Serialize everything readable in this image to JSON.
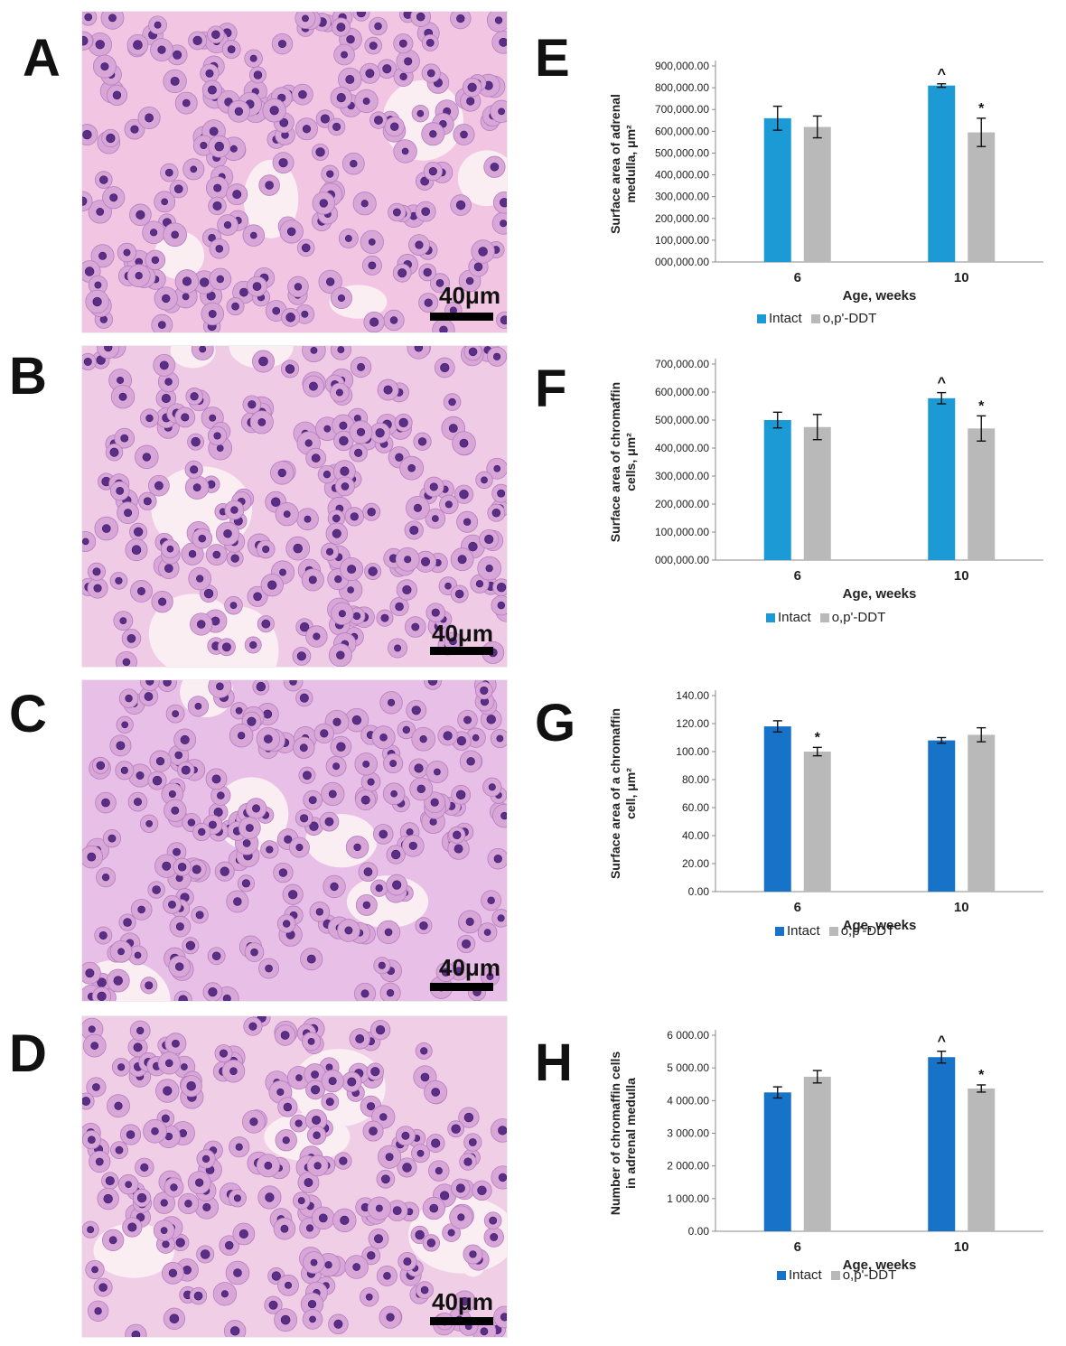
{
  "panels": [
    {
      "letter": "A",
      "scale": "40μm",
      "tint": "#f2c6e2"
    },
    {
      "letter": "B",
      "scale": "40μm",
      "tint": "#efcbe6"
    },
    {
      "letter": "C",
      "scale": "40μm",
      "tint": "#e8bfe6"
    },
    {
      "letter": "D",
      "scale": "40μm",
      "tint": "#f0cfe6"
    }
  ],
  "chart_data": [
    {
      "letter": "E",
      "type": "bar",
      "categories": [
        "6",
        "10"
      ],
      "xlabel": "Age, weeks",
      "ylabel": [
        "Surface area of adrenal",
        "medulla, μm²"
      ],
      "ylim": [
        0,
        900000
      ],
      "yticks": [
        "000,000.00",
        "100,000.00",
        "200,000.00",
        "300,000.00",
        "400,000.00",
        "500,000.00",
        "600,000.00",
        "700,000.00",
        "800,000.00",
        "900,000.00"
      ],
      "series": [
        {
          "name": "Intact",
          "color": "#1c9ad6",
          "values": [
            660000,
            810000
          ],
          "errors": [
            55000,
            8000
          ],
          "marks": [
            "",
            "^"
          ]
        },
        {
          "name": "o,p'-DDT",
          "color": "#b9b9b9",
          "values": [
            620000,
            595000
          ],
          "errors": [
            50000,
            65000
          ],
          "marks": [
            "",
            "*"
          ]
        }
      ]
    },
    {
      "letter": "F",
      "type": "bar",
      "categories": [
        "6",
        "10"
      ],
      "xlabel": "Age, weeks",
      "ylabel": [
        "Surface area of chromaffin",
        "cells, μm²"
      ],
      "ylim": [
        0,
        700000
      ],
      "yticks": [
        "000,000.00",
        "100,000.00",
        "200,000.00",
        "300,000.00",
        "400,000.00",
        "500,000.00",
        "600,000.00",
        "700,000.00"
      ],
      "series": [
        {
          "name": "Intact",
          "color": "#1c9ad6",
          "values": [
            500000,
            578000
          ],
          "errors": [
            28000,
            20000
          ],
          "marks": [
            "",
            "^"
          ]
        },
        {
          "name": "o,p'-DDT",
          "color": "#b9b9b9",
          "values": [
            475000,
            470000
          ],
          "errors": [
            45000,
            45000
          ],
          "marks": [
            "",
            "*"
          ]
        }
      ]
    },
    {
      "letter": "G",
      "type": "bar",
      "categories": [
        "6",
        "10"
      ],
      "xlabel": "Age, weeks",
      "ylabel": [
        "Surface area of a chromaffin",
        "cell, μm²"
      ],
      "ylim": [
        0,
        140
      ],
      "yticks": [
        "0.00",
        "20.00",
        "40.00",
        "60.00",
        "80.00",
        "100.00",
        "120.00",
        "140.00"
      ],
      "series": [
        {
          "name": "Intact",
          "color": "#1673c8",
          "values": [
            118,
            108
          ],
          "errors": [
            4,
            2
          ],
          "marks": [
            "",
            ""
          ]
        },
        {
          "name": "o,p'-DDT",
          "color": "#b9b9b9",
          "values": [
            100,
            112
          ],
          "errors": [
            3,
            5
          ],
          "marks": [
            "*",
            ""
          ]
        }
      ]
    },
    {
      "letter": "H",
      "type": "bar",
      "categories": [
        "6",
        "10"
      ],
      "xlabel": "Age, weeks",
      "ylabel": [
        "Number of chromaffin cells",
        "in adrenal medulla"
      ],
      "ylim": [
        0,
        6000
      ],
      "yticks": [
        "0.00",
        "1 000.00",
        "2 000.00",
        "3 000.00",
        "4 000.00",
        "5 000.00",
        "6 000.00"
      ],
      "series": [
        {
          "name": "Intact",
          "color": "#1673c8",
          "values": [
            4250,
            5330
          ],
          "errors": [
            170,
            180
          ],
          "marks": [
            "",
            "^"
          ]
        },
        {
          "name": "o,p'-DDT",
          "color": "#b9b9b9",
          "values": [
            4730,
            4370
          ],
          "errors": [
            190,
            110
          ],
          "marks": [
            "",
            "*"
          ]
        }
      ]
    }
  ]
}
